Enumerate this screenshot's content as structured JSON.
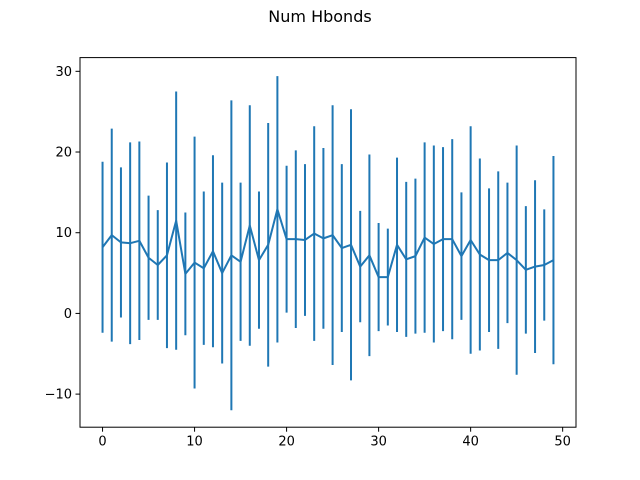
{
  "chart_data": {
    "type": "line",
    "title": "Num Hbonds",
    "xlabel": "",
    "ylabel": "",
    "xlim": [
      -2.45,
      51.45
    ],
    "ylim": [
      -14.1,
      31.7
    ],
    "xticks": [
      0,
      10,
      20,
      30,
      40,
      50
    ],
    "yticks": [
      -10,
      0,
      10,
      20,
      30
    ],
    "grid": false,
    "color": "#1f77b4",
    "series": [
      {
        "x": [
          0,
          1,
          2,
          3,
          4,
          5,
          6,
          7,
          8,
          9,
          10,
          11,
          12,
          13,
          14,
          15,
          16,
          17,
          18,
          19,
          20,
          21,
          22,
          23,
          24,
          25,
          26,
          27,
          28,
          29,
          30,
          31,
          32,
          33,
          34,
          35,
          36,
          37,
          38,
          39,
          40,
          41,
          42,
          43,
          44,
          45,
          46,
          47,
          48,
          49
        ],
        "y": [
          8.2,
          9.7,
          8.8,
          8.7,
          9.0,
          6.9,
          6.0,
          7.2,
          11.5,
          4.9,
          6.3,
          5.6,
          7.7,
          5.0,
          7.2,
          6.4,
          10.9,
          6.6,
          8.5,
          12.9,
          9.2,
          9.2,
          9.1,
          9.9,
          9.3,
          9.7,
          8.1,
          8.5,
          5.8,
          7.2,
          4.5,
          4.5,
          8.5,
          6.7,
          7.1,
          9.4,
          8.6,
          9.2,
          9.2,
          7.1,
          9.1,
          7.3,
          6.6,
          6.6,
          7.5,
          6.6,
          5.4,
          5.8,
          6.0,
          6.6
        ],
        "yerr": [
          10.6,
          13.2,
          9.3,
          12.5,
          12.3,
          7.7,
          6.8,
          11.5,
          16.0,
          7.6,
          15.6,
          9.5,
          11.9,
          11.2,
          19.2,
          9.8,
          14.9,
          8.5,
          15.1,
          16.5,
          9.1,
          11.0,
          9.4,
          13.3,
          11.2,
          16.1,
          10.4,
          16.8,
          6.9,
          12.5,
          6.7,
          6.0,
          10.8,
          9.6,
          9.6,
          11.8,
          12.2,
          11.4,
          12.4,
          7.9,
          14.1,
          11.9,
          8.9,
          11.0,
          8.7,
          14.2,
          7.9,
          10.7,
          6.9,
          12.9
        ]
      }
    ]
  }
}
